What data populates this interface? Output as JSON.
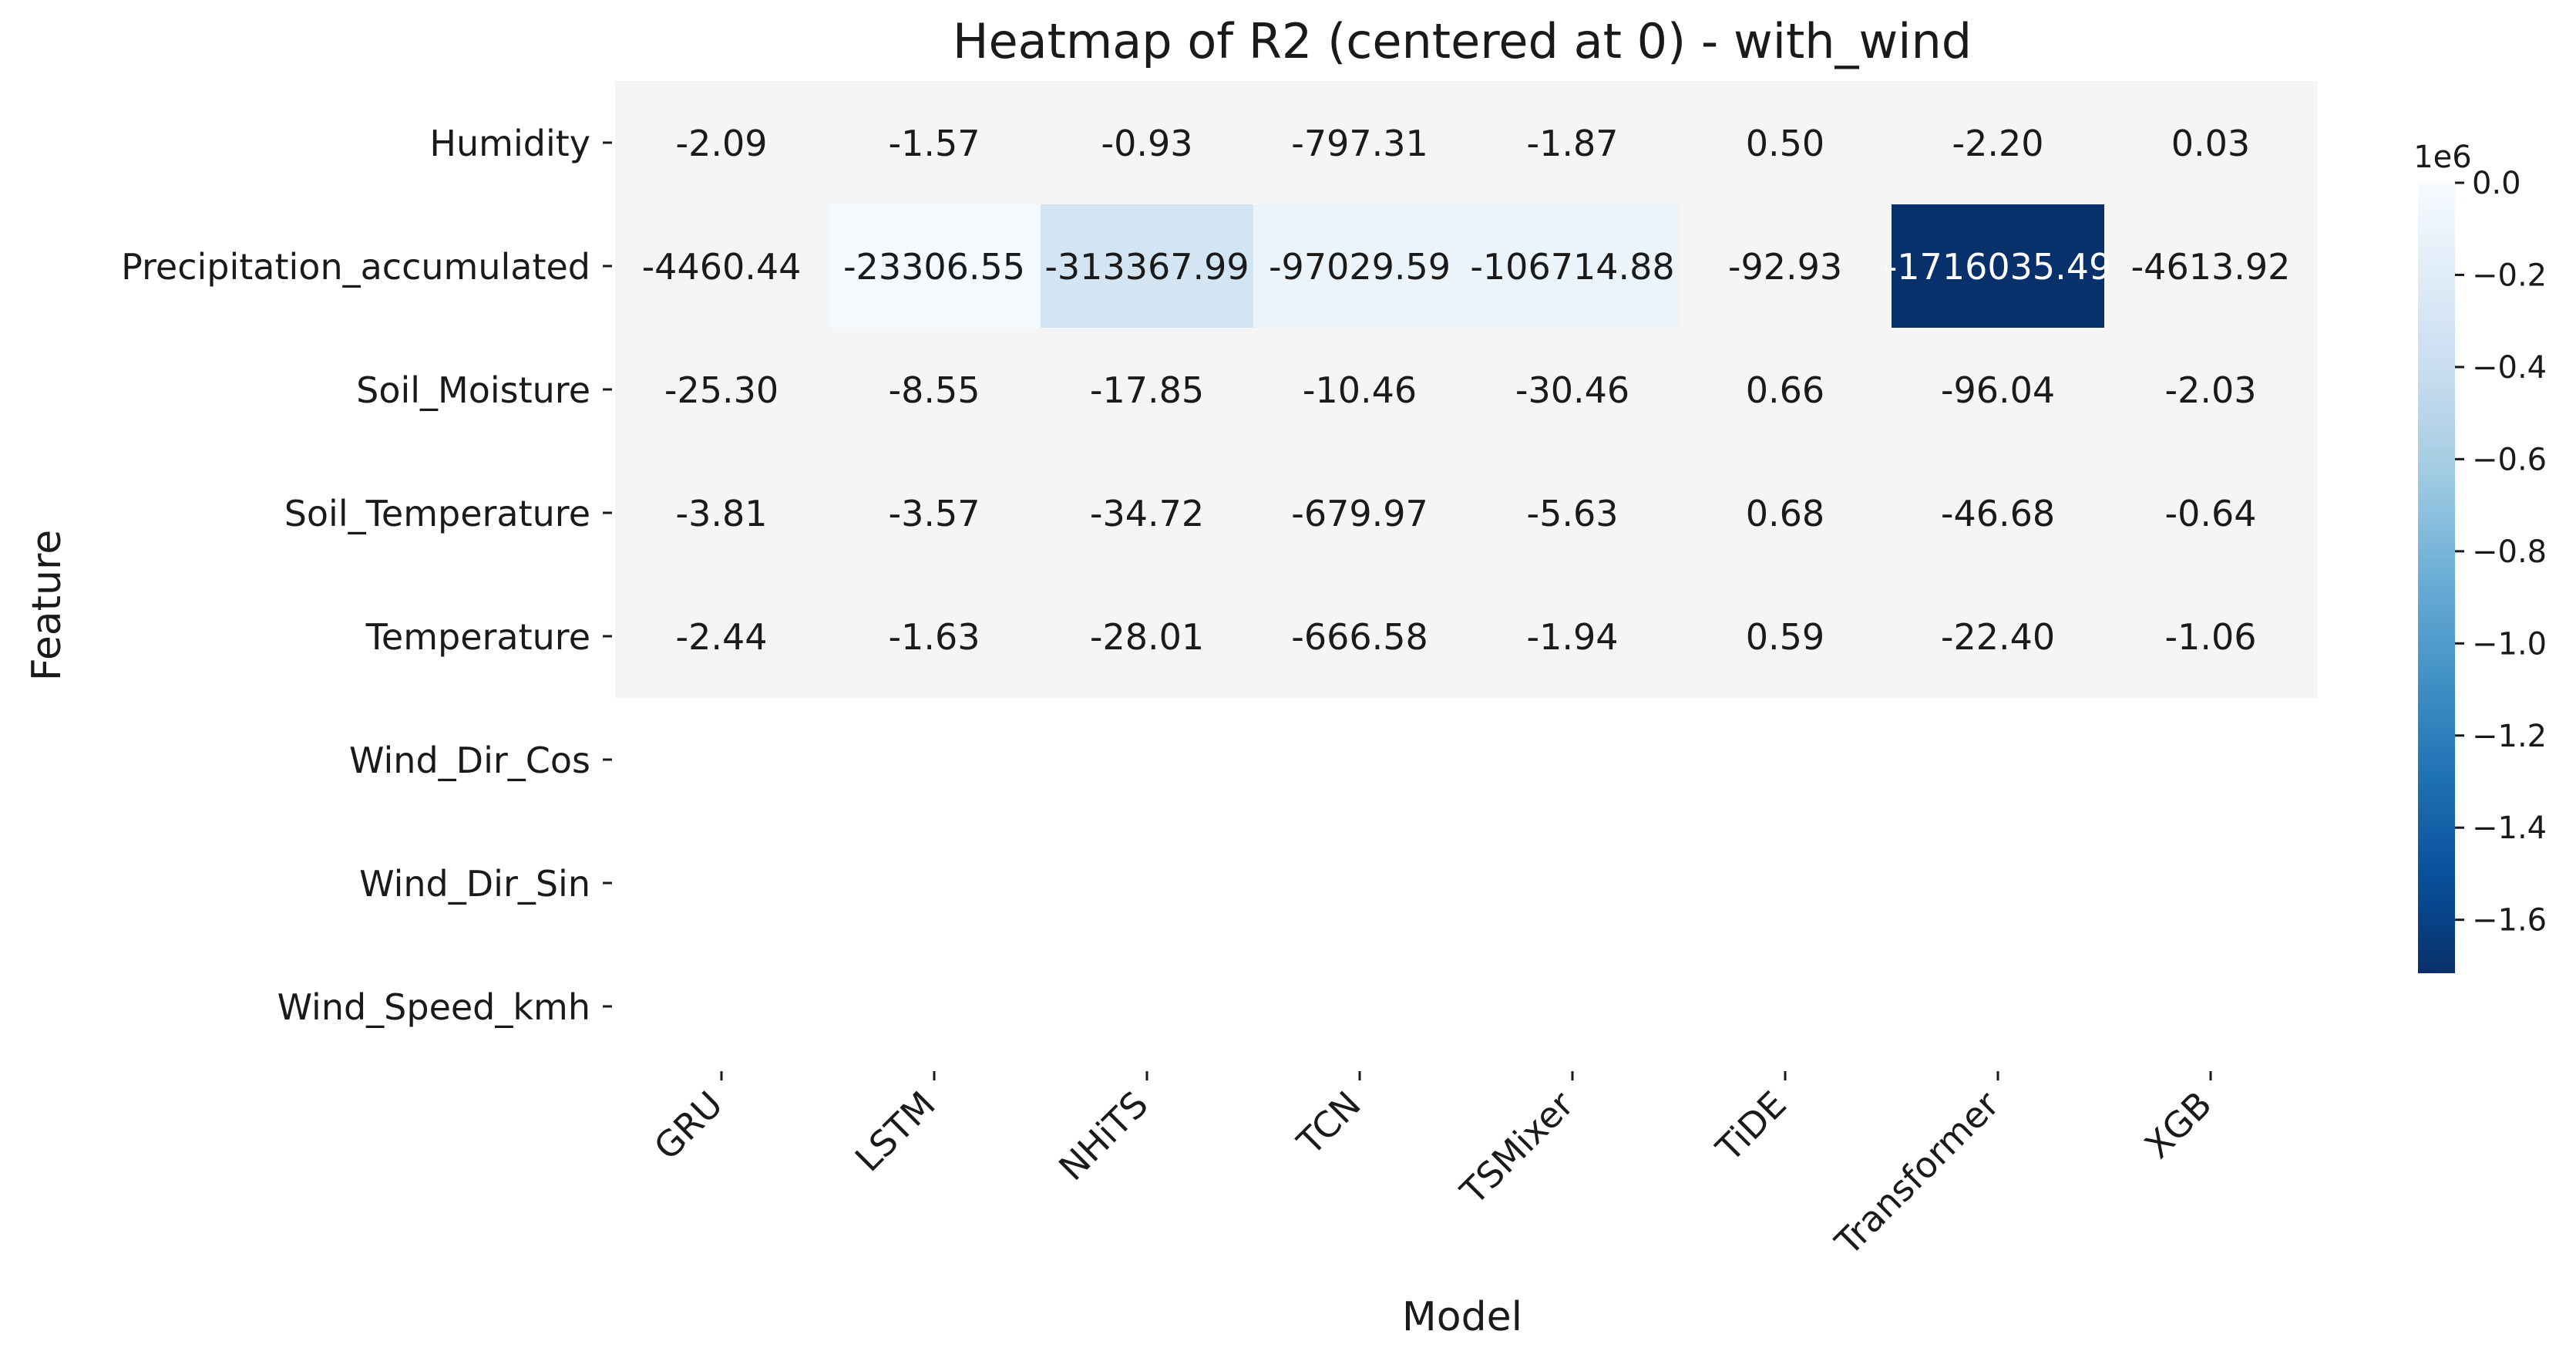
{
  "chart_data": {
    "type": "heatmap",
    "title": "Heatmap of R2 (centered at 0) - with_wind",
    "xlabel": "Model",
    "ylabel": "Feature",
    "columns": [
      "GRU",
      "LSTM",
      "NHiTS",
      "TCN",
      "TSMixer",
      "TiDE",
      "Transformer",
      "XGB"
    ],
    "rows": [
      "Humidity",
      "Precipitation_accumulated",
      "Soil_Moisture",
      "Soil_Temperature",
      "Temperature",
      "Wind_Dir_Cos",
      "Wind_Dir_Sin",
      "Wind_Speed_kmh"
    ],
    "values": [
      [
        -2.09,
        -1.57,
        -0.93,
        -797.31,
        -1.87,
        0.5,
        -2.2,
        0.03
      ],
      [
        -4460.44,
        -23306.55,
        -313367.99,
        -97029.59,
        -106714.88,
        -92.93,
        -1716035.49,
        -4613.92
      ],
      [
        -25.3,
        -8.55,
        -17.85,
        -10.46,
        -30.46,
        0.66,
        -96.04,
        -2.03
      ],
      [
        -3.81,
        -3.57,
        -34.72,
        -679.97,
        -5.63,
        0.68,
        -46.68,
        -0.64
      ],
      [
        -2.44,
        -1.63,
        -28.01,
        -666.58,
        -1.94,
        0.59,
        -22.4,
        -1.06
      ],
      [
        null,
        null,
        null,
        null,
        null,
        null,
        null,
        null
      ],
      [
        null,
        null,
        null,
        null,
        null,
        null,
        null,
        null
      ],
      [
        null,
        null,
        null,
        null,
        null,
        null,
        null,
        null
      ]
    ],
    "cell_labels": [
      [
        "-2.09",
        "-1.57",
        "-0.93",
        "-797.31",
        "-1.87",
        "0.50",
        "-2.20",
        "0.03"
      ],
      [
        "-4460.44",
        "-23306.55",
        "-313367.99",
        "-97029.59",
        "-106714.88",
        "-92.93",
        "-1716035.49",
        "-4613.92"
      ],
      [
        "-25.30",
        "-8.55",
        "-17.85",
        "-10.46",
        "-30.46",
        "0.66",
        "-96.04",
        "-2.03"
      ],
      [
        "-3.81",
        "-3.57",
        "-34.72",
        "-679.97",
        "-5.63",
        "0.68",
        "-46.68",
        "-0.64"
      ],
      [
        "-2.44",
        "-1.63",
        "-28.01",
        "-666.58",
        "-1.94",
        "0.59",
        "-22.40",
        "-1.06"
      ],
      [
        "",
        "",
        "",
        "",
        "",
        "",
        "",
        ""
      ],
      [
        "",
        "",
        "",
        "",
        "",
        "",
        "",
        ""
      ],
      [
        "",
        "",
        "",
        "",
        "",
        "",
        "",
        ""
      ]
    ],
    "colormap": "Blues_r (centered at 0)",
    "colors": {
      "zero": "#f5f5f5",
      "min": "#08306b",
      "stops": [
        "#08306b",
        "#08519c",
        "#2171b5",
        "#4292c6",
        "#6baed6",
        "#9ecae1",
        "#c6dbef",
        "#deebf7",
        "#f7fbff"
      ],
      "text_dark": "#1a1a1a",
      "text_light": "#ffffff"
    },
    "colorbar": {
      "vmin": -1716035.49,
      "vmax": 0.0,
      "ticks": [
        0.0,
        -0.2,
        -0.4,
        -0.6,
        -0.8,
        -1.0,
        -1.2,
        -1.4,
        -1.6
      ],
      "tick_labels": [
        "0.0",
        "−0.2",
        "−0.4",
        "−0.6",
        "−0.8",
        "−1.0",
        "−1.2",
        "−1.4",
        "−1.6"
      ],
      "scale_label": "1e6",
      "tick_scale": 1000000
    }
  }
}
